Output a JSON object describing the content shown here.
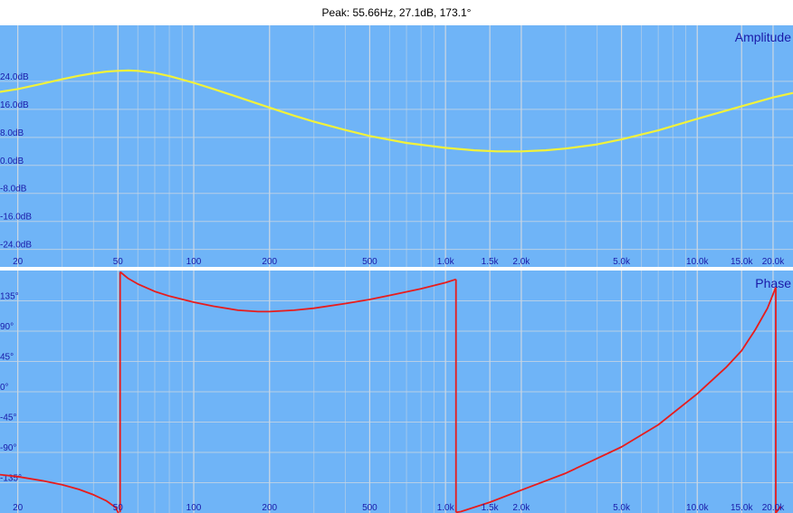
{
  "header": {
    "peak_readout": "Peak: 55.66Hz, 27.1dB, 173.1°"
  },
  "colors": {
    "panel_bg": "#6fb4f7",
    "grid": "#c9d6e3",
    "tick_text": "#1a1aa8",
    "amplitude_line": "#f2f23a",
    "phase_line": "#e81c1c"
  },
  "chart_data": [
    {
      "type": "line",
      "panel_label": "Amplitude",
      "x_scale": "log",
      "xlim": [
        17,
        24000
      ],
      "ylim": [
        -29,
        40
      ],
      "x_ticks": [
        {
          "value": 20,
          "label": "20"
        },
        {
          "value": 50,
          "label": "50"
        },
        {
          "value": 100,
          "label": "100"
        },
        {
          "value": 200,
          "label": "200"
        },
        {
          "value": 500,
          "label": "500"
        },
        {
          "value": 1000,
          "label": "1.0k"
        },
        {
          "value": 1500,
          "label": "1.5k"
        },
        {
          "value": 2000,
          "label": "2.0k"
        },
        {
          "value": 5000,
          "label": "5.0k"
        },
        {
          "value": 10000,
          "label": "10.0k"
        },
        {
          "value": 15000,
          "label": "15.0k"
        },
        {
          "value": 20000,
          "label": "20.0k"
        }
      ],
      "y_ticks": [
        {
          "value": 24,
          "label": "24.0dB"
        },
        {
          "value": 16,
          "label": "16.0dB"
        },
        {
          "value": 8,
          "label": "8.0dB"
        },
        {
          "value": 0,
          "label": "0.0dB"
        },
        {
          "value": -8,
          "label": "-8.0dB"
        },
        {
          "value": -16,
          "label": "-16.0dB"
        },
        {
          "value": -24,
          "label": "-24.0dB"
        }
      ],
      "grid": true,
      "series": [
        {
          "x": [
            17,
            20,
            25,
            30,
            35,
            40,
            45,
            50,
            55,
            60,
            70,
            80,
            100,
            120,
            150,
            200,
            250,
            300,
            400,
            500,
            700,
            1000,
            1300,
            1600,
            2000,
            2500,
            3000,
            4000,
            5000,
            7000,
            10000,
            15000,
            20000,
            24000
          ],
          "y": [
            21,
            21.8,
            23.3,
            24.6,
            25.6,
            26.3,
            26.8,
            27.0,
            27.1,
            27.0,
            26.4,
            25.5,
            23.6,
            21.8,
            19.5,
            16.5,
            14.2,
            12.5,
            10.1,
            8.4,
            6.4,
            5.0,
            4.3,
            4.0,
            4.0,
            4.3,
            4.8,
            6.0,
            7.4,
            10.0,
            13.3,
            16.9,
            19.4,
            20.7
          ]
        }
      ]
    },
    {
      "type": "line",
      "panel_label": "Phase",
      "x_scale": "log",
      "xlim": [
        17,
        24000
      ],
      "ylim": [
        -180,
        180
      ],
      "x_ticks": [
        {
          "value": 20,
          "label": "20"
        },
        {
          "value": 50,
          "label": "50"
        },
        {
          "value": 100,
          "label": "100"
        },
        {
          "value": 200,
          "label": "200"
        },
        {
          "value": 500,
          "label": "500"
        },
        {
          "value": 1000,
          "label": "1.0k"
        },
        {
          "value": 1500,
          "label": "1.5k"
        },
        {
          "value": 2000,
          "label": "2.0k"
        },
        {
          "value": 5000,
          "label": "5.0k"
        },
        {
          "value": 10000,
          "label": "10.0k"
        },
        {
          "value": 15000,
          "label": "15.0k"
        },
        {
          "value": 20000,
          "label": "20.0k"
        }
      ],
      "y_ticks": [
        {
          "value": 135,
          "label": "135°"
        },
        {
          "value": 90,
          "label": "90°"
        },
        {
          "value": 45,
          "label": "45°"
        },
        {
          "value": 0,
          "label": "0°"
        },
        {
          "value": -45,
          "label": "-45°"
        },
        {
          "value": -90,
          "label": "-90°"
        },
        {
          "value": -135,
          "label": "-135°"
        }
      ],
      "grid": true,
      "series": [
        {
          "x": [
            17,
            20,
            25,
            30,
            35,
            40,
            45,
            49,
            50,
            50.5,
            51,
            55,
            60,
            70,
            80,
            100,
            120,
            150,
            180,
            200,
            250,
            300,
            400,
            500,
            600,
            800,
            1000,
            1100,
            1100,
            1150,
            1500,
            2000,
            3000,
            5000,
            7000,
            10000,
            13000,
            15000,
            17000,
            19000,
            20500,
            20500,
            21500
          ],
          "y": [
            -123,
            -126,
            -132,
            -138,
            -145,
            -153,
            -162,
            -172,
            -179,
            -179,
            178,
            168,
            160,
            149,
            142,
            133,
            127,
            121,
            119,
            119,
            121,
            124,
            131,
            137,
            143,
            153,
            162,
            167,
            -179,
            -178,
            -164,
            -146,
            -121,
            -82,
            -49,
            -3,
            36,
            61,
            92,
            124,
            155,
            -180,
            -170
          ]
        }
      ]
    }
  ]
}
